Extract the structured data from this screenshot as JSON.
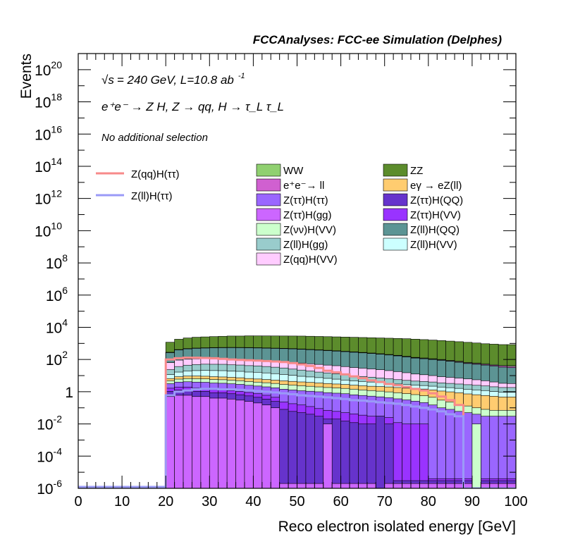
{
  "header": {
    "title": "FCCAnalyses: FCC-ee Simulation (Delphes)"
  },
  "annotations": {
    "energy_line_sqrt": "√s",
    "energy_line": "= 240 GeV, L=10.8 ab",
    "energy_line_exp": "-1",
    "process_line": "e⁺e⁻ → Z H, Z → qq, H → τ_L τ_L",
    "selection_line": "No additional selection"
  },
  "colors": {
    "ZqqHtautau": "#f78a8a",
    "ZllHtautau": "#9a9af7",
    "WW": "#90d070",
    "ZZ": "#5c8c2c",
    "ee_ll": "#d060d0",
    "egamma_eZll": "#ffcc70",
    "ZtautauHtautau": "#9a66ff",
    "ZtautauHQQ": "#6633cc",
    "ZtautauHgg": "#cc66ff",
    "ZtautauHVV": "#9933ff",
    "ZnunuHVV": "#ccffcc",
    "ZllHQQ": "#5c9494",
    "ZllHgg": "#99cccc",
    "ZllHVV": "#ccffff",
    "ZqqHVV": "#ffccff"
  },
  "chart_data": {
    "type": "area",
    "title": "FCCAnalyses: FCC-ee Simulation (Delphes)",
    "xlabel": "Reco electron isolated energy [GeV]",
    "ylabel": "Events",
    "xlim": [
      0,
      100
    ],
    "ylim": [
      1e-06,
      1e+21
    ],
    "log_y": true,
    "grid": false,
    "x_ticks": [
      "0",
      "10",
      "20",
      "30",
      "40",
      "50",
      "60",
      "70",
      "80",
      "90",
      "100"
    ],
    "y_ticks": [
      {
        "mant": "10",
        "exp": "-6"
      },
      {
        "mant": "10",
        "exp": "-4"
      },
      {
        "mant": "10",
        "exp": "-2"
      },
      {
        "mant": "1",
        "exp": ""
      },
      {
        "mant": "10",
        "exp": "2"
      },
      {
        "mant": "10",
        "exp": "4"
      },
      {
        "mant": "10",
        "exp": "6"
      },
      {
        "mant": "10",
        "exp": "8"
      },
      {
        "mant": "10",
        "exp": "10"
      },
      {
        "mant": "10",
        "exp": "12"
      },
      {
        "mant": "10",
        "exp": "14"
      },
      {
        "mant": "10",
        "exp": "16"
      },
      {
        "mant": "10",
        "exp": "18"
      },
      {
        "mant": "10",
        "exp": "20"
      }
    ],
    "stack_legend": [
      {
        "label": "WW",
        "color": "#90d070"
      },
      {
        "label": "ZZ",
        "color": "#5c8c2c"
      },
      {
        "label": "e⁺e⁻→ ll",
        "color": "#d060d0"
      },
      {
        "label": "eγ → eZ(ll)",
        "color": "#ffcc70"
      },
      {
        "label": "Z(ττ)H(ττ)",
        "color": "#9a66ff"
      },
      {
        "label": "Z(ττ)H(QQ)",
        "color": "#6633cc"
      },
      {
        "label": "Z(ττ)H(gg)",
        "color": "#cc66ff"
      },
      {
        "label": "Z(ττ)H(VV)",
        "color": "#9933ff"
      },
      {
        "label": "Z(νν)H(VV)",
        "color": "#ccffcc"
      },
      {
        "label": "Z(ll)H(QQ)",
        "color": "#5c9494"
      },
      {
        "label": "Z(ll)H(gg)",
        "color": "#99cccc"
      },
      {
        "label": "Z(ll)H(VV)",
        "color": "#ccffff"
      },
      {
        "label": "Z(qq)H(VV)",
        "color": "#ffccff"
      }
    ],
    "signal_legend": [
      {
        "label": "Z(qq)H(ττ)",
        "color": "#f78a8a"
      },
      {
        "label": "Z(ll)H(ττ)",
        "color": "#9a9af7"
      }
    ],
    "bin_edges": [
      20,
      22,
      24,
      26,
      28,
      30,
      32,
      34,
      36,
      38,
      40,
      42,
      44,
      46,
      48,
      50,
      52,
      54,
      56,
      58,
      60,
      62,
      64,
      66,
      68,
      70,
      72,
      74,
      76,
      78,
      80,
      82,
      84,
      86,
      88,
      90,
      92,
      94,
      96,
      98,
      100
    ],
    "stack_layers": [
      {
        "name": "Z(ττ)H(gg)",
        "color": "#cc66ff",
        "values": [
          0.5,
          0.6,
          0.6,
          0.5,
          0.5,
          0.4,
          0.4,
          0.35,
          0.3,
          0.25,
          0.2,
          0.15,
          0.1,
          1e-06,
          1e-06,
          1e-06,
          1e-06,
          1e-06,
          1e-06,
          1e-06,
          1e-06,
          1e-06,
          1e-06,
          1e-06,
          1e-06,
          1e-06,
          1e-06,
          1e-06,
          1e-06,
          1e-06,
          1e-06,
          1e-06,
          1e-06,
          1e-06,
          1e-06,
          1e-06,
          1e-06,
          1e-06,
          1e-06,
          1e-06
        ]
      },
      {
        "name": "Z(ττ)H(QQ)",
        "color": "#6633cc",
        "values": [
          0.55,
          0.65,
          0.65,
          0.55,
          0.55,
          0.45,
          0.45,
          0.4,
          0.35,
          0.3,
          0.25,
          0.2,
          0.15,
          0.08,
          0.06,
          0.05,
          0.04,
          0.03,
          0.02,
          0.02,
          0.015,
          0.012,
          0.01,
          0.01,
          0.01,
          0.01,
          1e-06,
          1e-06,
          1e-06,
          1e-06,
          1e-06,
          1e-06,
          1e-06,
          1e-06,
          1e-06,
          1e-06,
          1e-06,
          1e-06,
          1e-06,
          1e-06
        ]
      },
      {
        "name": "Z(ττ)H(VV)",
        "color": "#9933ff",
        "values": [
          0.6,
          0.7,
          0.7,
          0.6,
          0.6,
          0.5,
          0.5,
          0.45,
          0.4,
          0.35,
          0.3,
          0.25,
          0.2,
          0.15,
          0.12,
          0.1,
          0.08,
          0.06,
          0.05,
          0.04,
          0.035,
          0.03,
          0.025,
          0.02,
          0.02,
          0.015,
          0.012,
          0.01,
          0.01,
          0.01,
          1e-06,
          1e-06,
          1e-06,
          1e-06,
          1e-06,
          1e-06,
          1e-06,
          1e-06,
          1e-06,
          1e-06
        ]
      },
      {
        "name": "Z(ττ)H(ττ)",
        "color": "#9a66ff",
        "values": [
          1.5,
          2,
          2.2,
          2.3,
          2.2,
          2.1,
          2,
          1.9,
          1.8,
          1.6,
          1.5,
          1.4,
          1.3,
          1.2,
          1.1,
          1,
          0.95,
          0.9,
          0.8,
          0.75,
          0.7,
          0.6,
          0.55,
          0.5,
          0.45,
          0.4,
          0.35,
          0.3,
          0.25,
          0.2,
          0.15,
          0.1,
          0.08,
          0.06,
          0.05,
          0.04,
          0.03,
          0.03,
          0.03,
          0.03
        ]
      },
      {
        "name": "Z(νν)H(VV)",
        "color": "#ccffcc",
        "values": [
          1.6,
          2.1,
          2.4,
          2.5,
          2.4,
          2.3,
          2.2,
          2.1,
          2,
          1.8,
          1.7,
          1.6,
          1.5,
          1.4,
          1.3,
          1.2,
          1.1,
          1,
          0.95,
          0.9,
          0.85,
          0.8,
          0.7,
          0.65,
          0.6,
          0.55,
          0.5,
          0.45,
          0.4,
          0.35,
          0.3,
          0.2,
          0.15,
          0.1,
          0.08,
          0.06,
          0.05,
          0.04,
          0.04,
          0.04
        ]
      },
      {
        "name": "eγ → eZ(ll)",
        "color": "#ffcc70",
        "values": [
          1.8,
          2.5,
          2.8,
          3,
          2.9,
          2.8,
          2.7,
          2.6,
          2.5,
          2.3,
          2.2,
          2.1,
          2,
          1.9,
          1.8,
          1.7,
          1.6,
          1.5,
          1.4,
          1.3,
          1.2,
          1.1,
          1.05,
          1,
          1,
          1,
          0.95,
          0.9,
          0.9,
          0.9,
          0.85,
          0.8,
          0.75,
          0.7,
          0.6,
          0.55,
          0.5,
          0.45,
          0.4,
          0.4
        ]
      },
      {
        "name": "Z(ll)H(VV)",
        "color": "#ccffff",
        "values": [
          5,
          8,
          10,
          11,
          12,
          12,
          12,
          11,
          11,
          10,
          10,
          9,
          8,
          7,
          6,
          5,
          4.5,
          4,
          3.5,
          3,
          2.5,
          2.2,
          2,
          1.8,
          1.6,
          1.4,
          1.2,
          1.1,
          1,
          0.95,
          0.9,
          0.85,
          0.8,
          0.75,
          0.7,
          0.65,
          0.6,
          0.5,
          0.45,
          0.45
        ]
      },
      {
        "name": "Z(ll)H(gg)",
        "color": "#99cccc",
        "values": [
          12,
          20,
          25,
          28,
          30,
          30,
          30,
          28,
          27,
          25,
          24,
          22,
          20,
          18,
          15,
          13,
          11,
          9,
          8,
          7,
          6,
          5,
          4.5,
          4,
          3.5,
          3,
          2.6,
          2.3,
          2,
          1.9,
          1.8,
          1.6,
          1.5,
          1.4,
          1.3,
          1.2,
          1.1,
          1,
          0.9,
          0.9
        ]
      },
      {
        "name": "Z(qq)H(VV)",
        "color": "#ffccff",
        "values": [
          40,
          55,
          60,
          62,
          60,
          58,
          56,
          54,
          52,
          50,
          48,
          46,
          44,
          42,
          40,
          38,
          35,
          33,
          30,
          28,
          25,
          22,
          20,
          18,
          16,
          14,
          12,
          10,
          8,
          7,
          6,
          5,
          4.5,
          4,
          3.5,
          3,
          2.5,
          2,
          1.5,
          1.4
        ]
      },
      {
        "name": "Z(ll)H(QQ)",
        "color": "#5c9494",
        "values": [
          200,
          300,
          350,
          380,
          400,
          420,
          430,
          440,
          440,
          440,
          430,
          420,
          410,
          400,
          390,
          370,
          350,
          330,
          310,
          290,
          270,
          250,
          230,
          210,
          190,
          170,
          150,
          130,
          110,
          100,
          90,
          80,
          70,
          60,
          50,
          45,
          40,
          35,
          30,
          28
        ]
      },
      {
        "name": "e⁺e⁻→ ll",
        "color": "#d060d0",
        "values": [
          4,
          5,
          5,
          5.5,
          5.5,
          5.5,
          5.5,
          5.5,
          5.5,
          5.5,
          5.5,
          5.5,
          5.5,
          5.5,
          5.5,
          5.5,
          5.5,
          5.5,
          5.5,
          5.5,
          5.5,
          5.5,
          5.5,
          5.5,
          5.5,
          5,
          5,
          5,
          5,
          5,
          5,
          5,
          5,
          5,
          5,
          5,
          5,
          5,
          6,
          6
        ]
      },
      {
        "name": "WW",
        "color": "#90d070",
        "values": [
          15,
          18,
          18,
          18,
          18,
          18,
          18,
          18,
          17,
          17,
          17,
          16,
          16,
          15,
          15,
          15,
          14,
          14,
          13,
          13,
          12,
          12,
          11,
          11,
          10,
          10,
          9,
          9,
          8,
          8,
          7,
          7,
          6,
          6,
          5,
          5,
          5,
          5,
          5,
          5
        ]
      },
      {
        "name": "ZZ",
        "color": "#5c8c2c",
        "values": [
          900,
          1400,
          1700,
          1900,
          2000,
          2100,
          2200,
          2300,
          2300,
          2400,
          2400,
          2400,
          2400,
          2400,
          2400,
          2400,
          2350,
          2300,
          2250,
          2200,
          2150,
          2100,
          2050,
          2000,
          1950,
          1900,
          1850,
          1800,
          1700,
          1600,
          1500,
          1400,
          1300,
          1200,
          1100,
          1000,
          900,
          850,
          800,
          800
        ]
      }
    ],
    "spikes": [
      {
        "name": "Z(ττ)H(gg)",
        "color": "#cc66ff",
        "x0": 56,
        "x1": 58,
        "value": 0.01
      },
      {
        "name": "Z(ττ)H(QQ)",
        "color": "#6633cc",
        "x0": 68,
        "x1": 70,
        "value": 0.03
      },
      {
        "name": "Z(νν)H(VV)",
        "color": "#ccffcc",
        "x0": 90,
        "x1": 92,
        "value": 0.01
      }
    ],
    "signal_series": [
      {
        "name": "Z(qq)H(ττ)",
        "color": "#f78a8a",
        "values": [
          100,
          120,
          130,
          130,
          125,
          120,
          110,
          100,
          95,
          90,
          85,
          80,
          75,
          70,
          60,
          50,
          40,
          30,
          20,
          16,
          12,
          9,
          7,
          5,
          4,
          3,
          2.5,
          2,
          1.5,
          1.2,
          0.8,
          0.5,
          0.3,
          0.15,
          1e-06,
          1e-06,
          1e-06,
          1e-06,
          1e-06,
          1e-06
        ]
      },
      {
        "name": "Z(ll)H(ττ)",
        "color": "#9a9af7",
        "values": [
          0.6,
          1,
          1.2,
          1.4,
          1.5,
          1.5,
          1.4,
          1.4,
          1.3,
          1.2,
          1.1,
          1,
          0.9,
          0.8,
          0.7,
          0.6,
          0.55,
          0.5,
          0.45,
          0.4,
          0.35,
          0.3,
          0.28,
          0.25,
          0.22,
          0.2,
          0.18,
          0.15,
          0.12,
          0.1,
          0.08,
          0.06,
          0.04,
          0.03,
          1e-06,
          1e-06,
          1e-06,
          1e-06,
          1e-06,
          1e-06
        ]
      }
    ]
  }
}
